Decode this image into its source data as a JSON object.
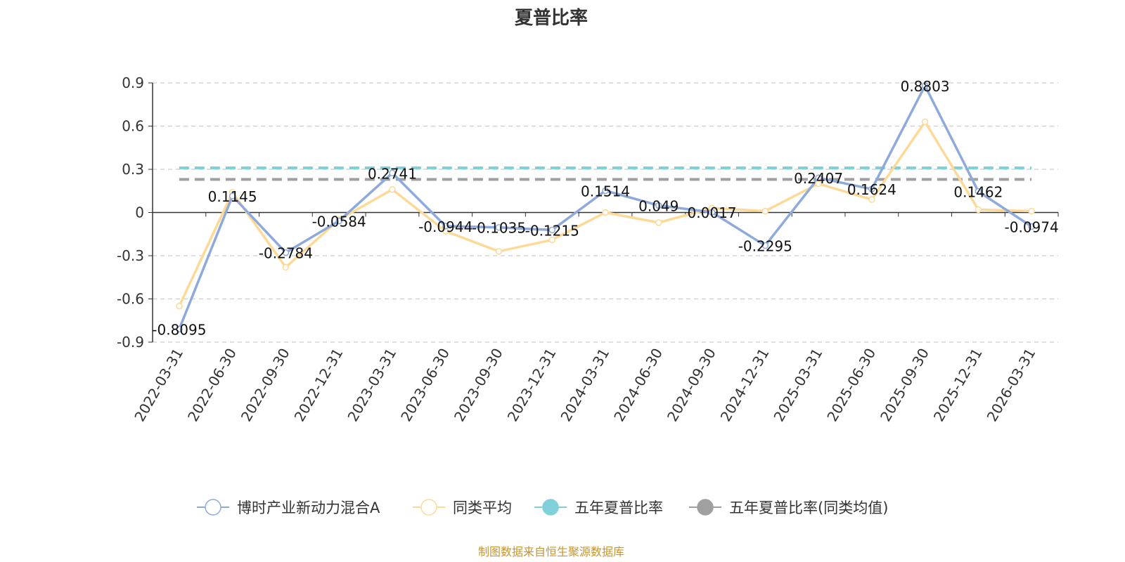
{
  "chart_data": {
    "type": "line",
    "title": "夏普比率",
    "categories": [
      "2022-03-31",
      "2022-06-30",
      "2022-09-30",
      "2022-12-31",
      "2023-03-31",
      "2023-06-30",
      "2023-09-30",
      "2023-12-31",
      "2024-03-31",
      "2024-06-30",
      "2024-09-30",
      "2024-12-31",
      "2025-03-31",
      "2025-06-30",
      "2025-09-30",
      "2025-12-31",
      "2026-03-31"
    ],
    "yticks": [
      "0.9",
      "0.6",
      "0.3",
      "0",
      "-0.3",
      "-0.6",
      "-0.9"
    ],
    "ylim": [
      -0.9,
      0.9
    ],
    "grid": true,
    "legend_position": "bottom",
    "series": [
      {
        "name": "博时产业新动力混合A",
        "color": "#8eaadb",
        "values": [
          -0.8095,
          0.1145,
          -0.2784,
          -0.0584,
          0.2741,
          -0.0944,
          -0.1035,
          -0.1215,
          0.1514,
          0.049,
          0.0017,
          -0.2295,
          0.2407,
          0.1624,
          0.8803,
          0.1462,
          -0.0974
        ],
        "labels": [
          "-0.8095",
          "0.1145",
          "-0.2784",
          "-0.0584",
          "0.2741",
          "-0.0944",
          "-0.1035",
          "-0.1215",
          "0.1514",
          "0.049",
          "0.0017",
          "-0.2295",
          "0.2407",
          "0.1624",
          "0.8803",
          "0.1462",
          "-0.0974"
        ]
      },
      {
        "name": "同类平均",
        "color": "#fdd998",
        "values": [
          -0.65,
          0.14,
          -0.38,
          -0.05,
          0.16,
          -0.13,
          -0.27,
          -0.19,
          0.0,
          -0.07,
          0.03,
          0.01,
          0.2,
          0.09,
          0.63,
          0.02,
          0.01
        ]
      },
      {
        "name": "五年夏普比率",
        "color": "#7fd0d8",
        "constant": 0.31
      },
      {
        "name": "五年夏普比率(同类均值)",
        "color": "#a0a0a0",
        "constant": 0.23
      }
    ]
  },
  "source_text": "制图数据来自恒生聚源数据库"
}
